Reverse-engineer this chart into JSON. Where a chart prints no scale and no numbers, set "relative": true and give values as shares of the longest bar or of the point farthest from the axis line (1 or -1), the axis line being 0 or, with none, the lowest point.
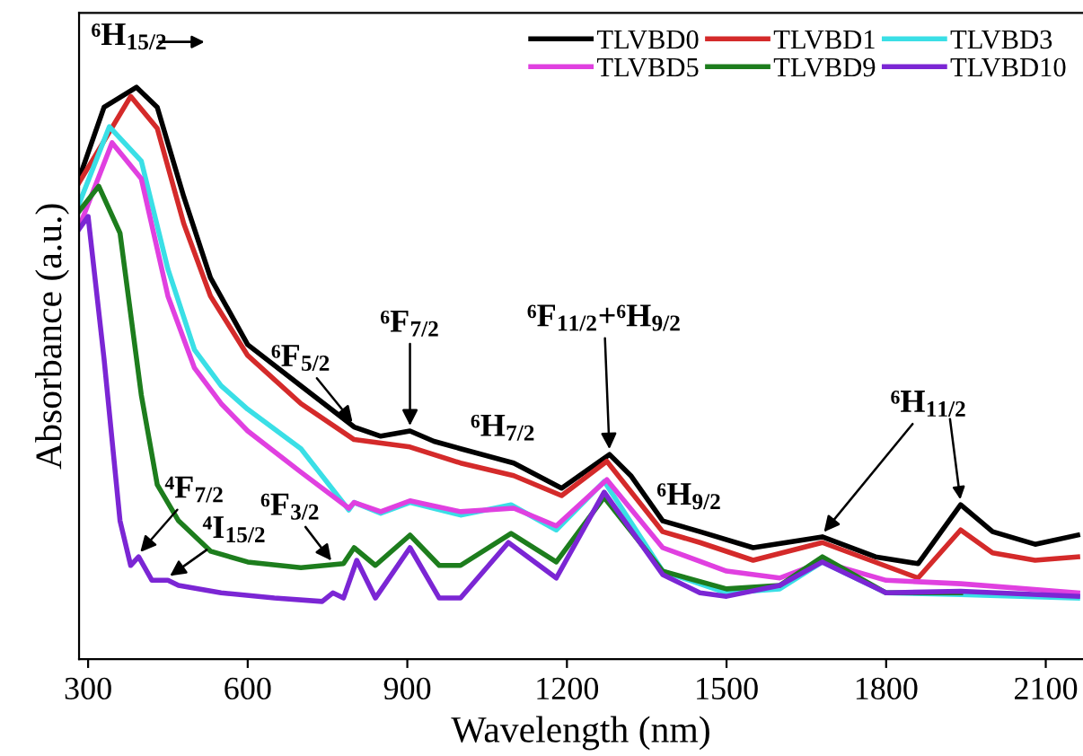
{
  "chart_data": {
    "type": "line",
    "xlabel": "Wavelength (nm)",
    "ylabel": "Absorbance (a.u.)",
    "relative": true,
    "xlim": [
      283,
      2170
    ],
    "xticks": [
      300,
      600,
      900,
      1200,
      1500,
      1800,
      2100
    ],
    "grid": false,
    "legend": "top right",
    "line_style": "solid",
    "marker": "none",
    "series": [
      {
        "name": "TLVBD0",
        "color": "#000000",
        "x": [
          283,
          330,
          391,
          430,
          480,
          530,
          600,
          700,
          800,
          850,
          905,
          950,
          1000,
          1100,
          1190,
          1280,
          1320,
          1380,
          1450,
          1550,
          1680,
          1780,
          1860,
          1940,
          2000,
          2080,
          2160
        ],
        "values": [
          0.84,
          0.965,
          1.0,
          0.965,
          0.808,
          0.667,
          0.55,
          0.478,
          0.406,
          0.39,
          0.399,
          0.381,
          0.368,
          0.343,
          0.299,
          0.358,
          0.321,
          0.242,
          0.223,
          0.195,
          0.214,
          0.179,
          0.167,
          0.27,
          0.223,
          0.201,
          0.217
        ]
      },
      {
        "name": "TLVBD1",
        "color": "#d42a2a",
        "x": [
          283,
          380,
          430,
          480,
          530,
          600,
          700,
          800,
          905,
          1000,
          1100,
          1190,
          1275,
          1380,
          1450,
          1550,
          1680,
          1860,
          1940,
          2000,
          2080,
          2160
        ],
        "values": [
          0.833,
          0.984,
          0.928,
          0.761,
          0.635,
          0.531,
          0.447,
          0.384,
          0.371,
          0.343,
          0.321,
          0.286,
          0.346,
          0.223,
          0.204,
          0.173,
          0.204,
          0.142,
          0.226,
          0.186,
          0.173,
          0.179
        ]
      },
      {
        "name": "TLVBD3",
        "color": "#3adfe6",
        "x": [
          283,
          340,
          400,
          450,
          500,
          550,
          600,
          700,
          790,
          800,
          850,
          905,
          1000,
          1095,
          1180,
          1270,
          1380,
          1500,
          1600,
          1680,
          1800,
          1940,
          2160
        ],
        "values": [
          0.796,
          0.931,
          0.871,
          0.682,
          0.541,
          0.478,
          0.437,
          0.368,
          0.261,
          0.274,
          0.255,
          0.274,
          0.252,
          0.27,
          0.226,
          0.311,
          0.154,
          0.116,
          0.123,
          0.17,
          0.116,
          0.113,
          0.107
        ]
      },
      {
        "name": "TLVBD5",
        "color": "#e040e0",
        "x": [
          283,
          345,
          400,
          450,
          500,
          550,
          600,
          700,
          790,
          800,
          850,
          905,
          1000,
          1100,
          1180,
          1275,
          1380,
          1500,
          1600,
          1680,
          1800,
          1940,
          2160
        ],
        "values": [
          0.755,
          0.903,
          0.84,
          0.635,
          0.509,
          0.447,
          0.399,
          0.327,
          0.264,
          0.274,
          0.258,
          0.277,
          0.258,
          0.264,
          0.233,
          0.314,
          0.195,
          0.154,
          0.142,
          0.17,
          0.138,
          0.132,
          0.116
        ]
      },
      {
        "name": "TLVBD9",
        "color": "#1d7d1d",
        "x": [
          283,
          320,
          360,
          400,
          430,
          470,
          530,
          600,
          700,
          780,
          800,
          840,
          905,
          960,
          1000,
          1095,
          1180,
          1270,
          1380,
          1500,
          1600,
          1680,
          1800,
          1940
        ],
        "values": [
          0.783,
          0.827,
          0.745,
          0.462,
          0.305,
          0.242,
          0.189,
          0.17,
          0.16,
          0.167,
          0.195,
          0.164,
          0.217,
          0.164,
          0.164,
          0.22,
          0.17,
          0.283,
          0.154,
          0.123,
          0.129,
          0.179,
          0.116,
          0.116
        ]
      },
      {
        "name": "TLVBD10",
        "color": "#7b26d4",
        "x": [
          283,
          300,
          330,
          360,
          380,
          395,
          420,
          450,
          470,
          550,
          650,
          740,
          760,
          780,
          805,
          840,
          905,
          960,
          1000,
          1090,
          1180,
          1270,
          1380,
          1450,
          1500,
          1600,
          1680,
          1800,
          1940,
          2160
        ],
        "values": [
          0.752,
          0.774,
          0.525,
          0.242,
          0.164,
          0.179,
          0.138,
          0.138,
          0.129,
          0.116,
          0.107,
          0.101,
          0.116,
          0.107,
          0.173,
          0.107,
          0.195,
          0.107,
          0.107,
          0.204,
          0.142,
          0.292,
          0.148,
          0.116,
          0.11,
          0.129,
          0.17,
          0.116,
          0.119,
          0.11
        ]
      }
    ],
    "annotations": [
      "⁶H$_{15/2}$",
      {
        "text": "⁶F$_{5/2}$",
        "x": 800,
        "y": 0.406
      },
      {
        "text": "⁶F$_{7/2}$",
        "x": 905,
        "y": 0.399
      },
      {
        "text": "⁶H$_{7/2}$",
        "x": 1100,
        "y": 0.343
      },
      {
        "text": "⁶F$_{11/2}$+⁶H$_{9/2}$",
        "x": 1280,
        "y": 0.358
      },
      {
        "text": "⁶H$_{9/2}$",
        "x": 1450,
        "y": 0.223
      },
      {
        "text": "⁶H$_{11/2}$",
        "x": 1680,
        "y": 0.214
      },
      {
        "text": "⁴F$_{7/2}$",
        "x": 395,
        "y": 0.179
      },
      {
        "text": "⁴I$_{15/2}$",
        "x": 450,
        "y": 0.138
      },
      {
        "text": "⁶F$_{3/2}$",
        "x": 760,
        "y": 0.164
      }
    ]
  }
}
